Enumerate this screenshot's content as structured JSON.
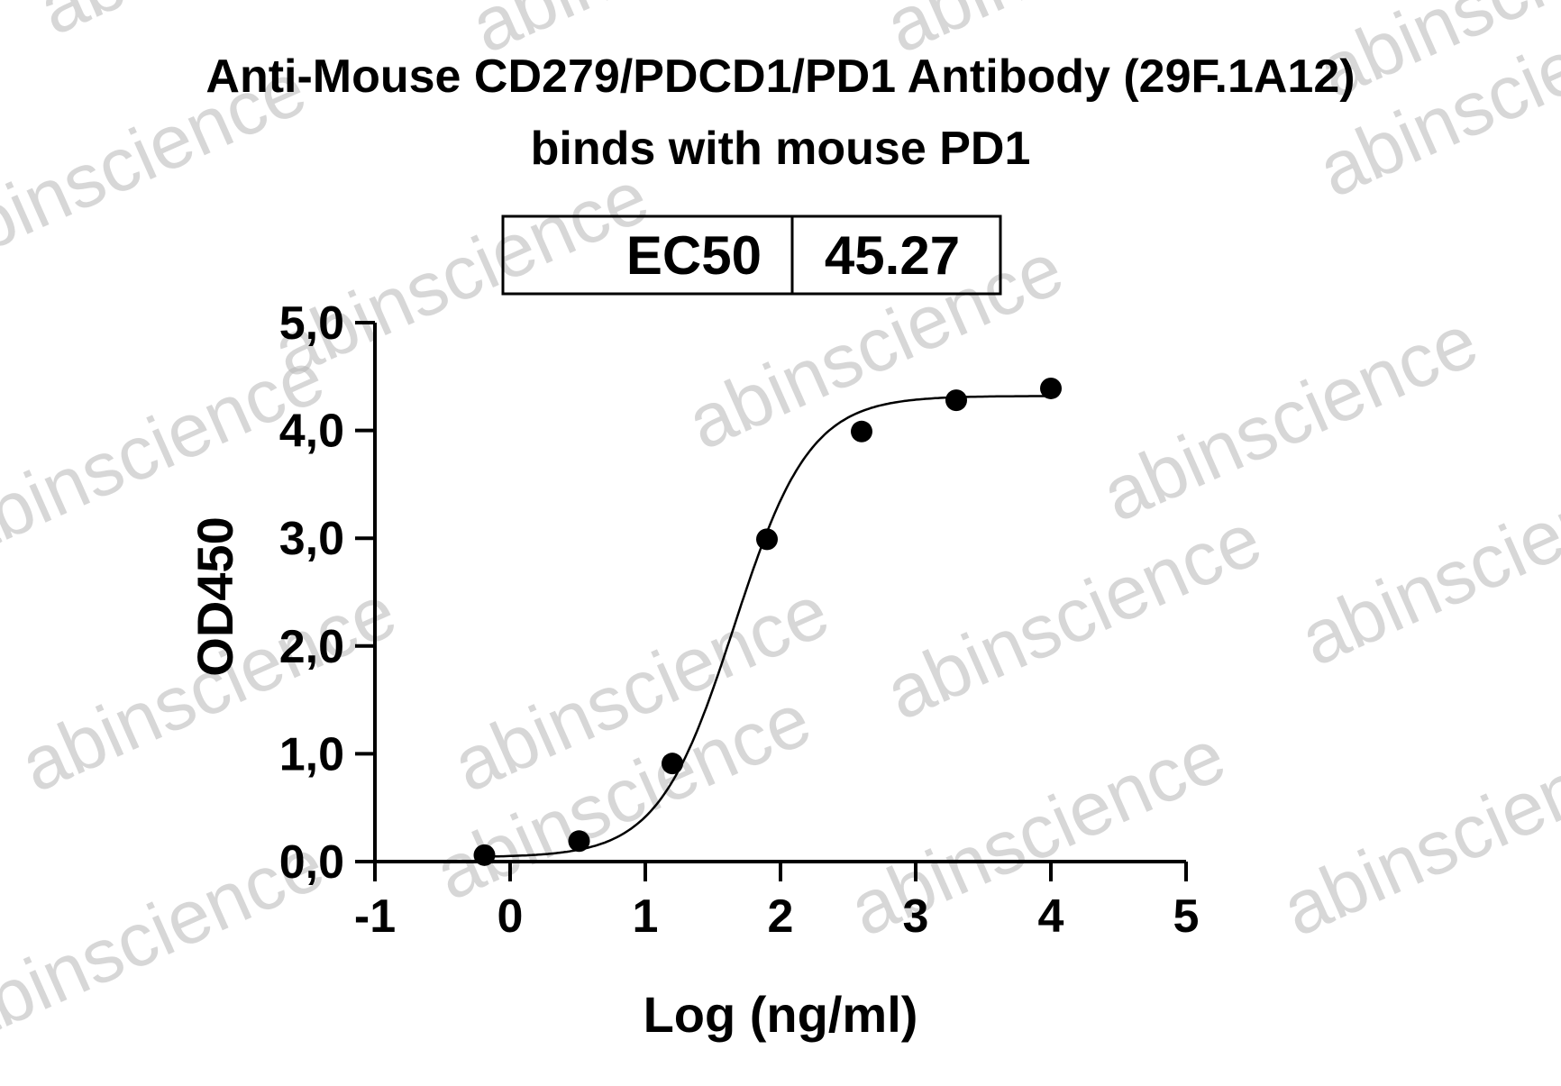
{
  "watermark_text": "abinscience",
  "chart_data": {
    "type": "scatter",
    "title": "Anti-Mouse CD279/PDCD1/PD1 Antibody (29F.1A12)",
    "subtitle": "binds with mouse PD1",
    "xlabel": "Log (ng/ml)",
    "ylabel": "OD450",
    "xlim": [
      -1,
      5
    ],
    "ylim": [
      0,
      5
    ],
    "x_ticks": [
      "-1",
      "0",
      "1",
      "2",
      "3",
      "4",
      "5"
    ],
    "y_ticks": [
      "0,0",
      "1,0",
      "2,0",
      "3,0",
      "4,0",
      "5,0"
    ],
    "grid": false,
    "ec50": {
      "label": "EC50",
      "value": "45.27"
    },
    "points": [
      {
        "x": -0.19,
        "y": 0.06
      },
      {
        "x": 0.51,
        "y": 0.19
      },
      {
        "x": 1.2,
        "y": 0.91
      },
      {
        "x": 1.9,
        "y": 2.99
      },
      {
        "x": 2.6,
        "y": 3.99
      },
      {
        "x": 3.3,
        "y": 4.28
      },
      {
        "x": 4.0,
        "y": 4.39
      }
    ],
    "fit_curve": {
      "model": "4PL",
      "bottom": 0.04,
      "top": 4.32,
      "log_ec50": 1.656,
      "hill": 1.55
    },
    "colors": {
      "points": "#000000",
      "curve": "#000000",
      "axes": "#000000",
      "watermark": "#b8b8b8"
    }
  }
}
